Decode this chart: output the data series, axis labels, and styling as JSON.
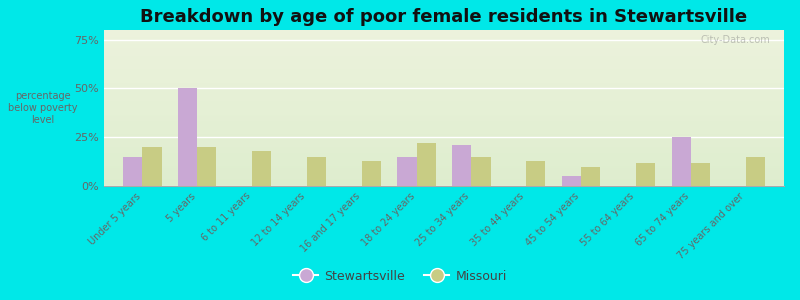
{
  "title": "Breakdown by age of poor female residents in Stewartsville",
  "ylabel": "percentage\nbelow poverty\nlevel",
  "categories": [
    "Under 5 years",
    "5 years",
    "6 to 11 years",
    "12 to 14 years",
    "16 and 17 years",
    "18 to 24 years",
    "25 to 34 years",
    "35 to 44 years",
    "45 to 54 years",
    "55 to 64 years",
    "65 to 74 years",
    "75 years and over"
  ],
  "stewartsville": [
    15.0,
    50.0,
    0.0,
    0.0,
    0.0,
    15.0,
    21.0,
    0.0,
    5.0,
    0.0,
    25.0,
    0.0
  ],
  "missouri": [
    20.0,
    20.0,
    18.0,
    15.0,
    13.0,
    22.0,
    15.0,
    13.0,
    10.0,
    12.0,
    12.0,
    15.0
  ],
  "stewartsville_color": "#c9a8d4",
  "missouri_color": "#c8cc84",
  "background_outer": "#00e8e8",
  "background_plot": "#e8f0d8",
  "ylim": [
    0,
    80
  ],
  "yticks": [
    0,
    25,
    50,
    75
  ],
  "ytick_labels": [
    "0%",
    "25%",
    "50%",
    "75%"
  ],
  "bar_width": 0.35,
  "title_fontsize": 13,
  "legend_labels": [
    "Stewartsville",
    "Missouri"
  ],
  "watermark": "City-Data.com"
}
